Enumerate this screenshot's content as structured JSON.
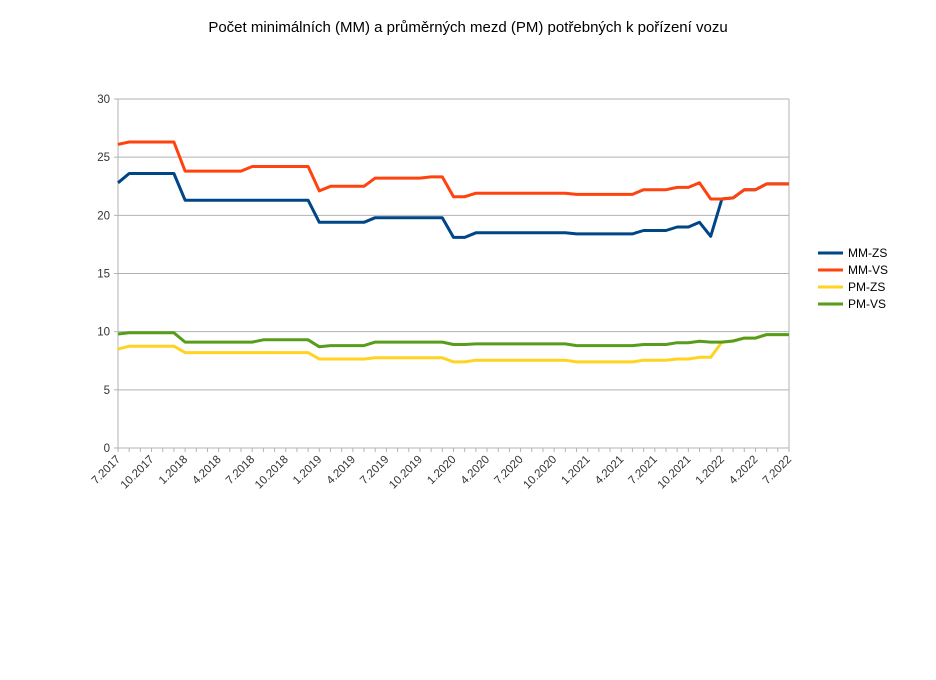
{
  "chart_data": {
    "type": "line",
    "title": "Počet minimálních (MM) a průměrných mezd (PM) potřebných k pořízení vozu",
    "xlabel": "",
    "ylabel": "",
    "ylim": [
      0,
      30
    ],
    "yticks": [
      "0",
      "5",
      "10",
      "15",
      "20",
      "25",
      "30"
    ],
    "grid": true,
    "legend_position": "right",
    "categories": [
      "7.2017",
      "8.2017",
      "9.2017",
      "10.2017",
      "11.2017",
      "12.2017",
      "1.2018",
      "2.2018",
      "3.2018",
      "4.2018",
      "5.2018",
      "6.2018",
      "7.2018",
      "8.2018",
      "9.2018",
      "10.2018",
      "11.2018",
      "12.2018",
      "1.2019",
      "2.2019",
      "3.2019",
      "4.2019",
      "5.2019",
      "6.2019",
      "7.2019",
      "8.2019",
      "9.2019",
      "10.2019",
      "11.2019",
      "12.2019",
      "1.2020",
      "2.2020",
      "3.2020",
      "4.2020",
      "5.2020",
      "6.2020",
      "7.2020",
      "8.2020",
      "9.2020",
      "10.2020",
      "11.2020",
      "12.2020",
      "1.2021",
      "2.2021",
      "3.2021",
      "4.2021",
      "5.2021",
      "6.2021",
      "7.2021",
      "8.2021",
      "9.2021",
      "10.2021",
      "11.2021",
      "12.2021",
      "1.2022",
      "2.2022",
      "3.2022",
      "4.2022",
      "5.2022",
      "6.2022",
      "7.2022"
    ],
    "series": [
      {
        "name": "MM-ZS",
        "color": "#004586",
        "values": [
          22.8,
          23.6,
          23.6,
          23.6,
          23.6,
          23.6,
          21.3,
          21.3,
          21.3,
          21.3,
          21.3,
          21.3,
          21.3,
          21.3,
          21.3,
          21.3,
          21.3,
          21.3,
          19.4,
          19.4,
          19.4,
          19.4,
          19.4,
          19.8,
          19.8,
          19.8,
          19.8,
          19.8,
          19.8,
          19.8,
          18.1,
          18.1,
          18.5,
          18.5,
          18.5,
          18.5,
          18.5,
          18.5,
          18.5,
          18.5,
          18.5,
          18.4,
          18.4,
          18.4,
          18.4,
          18.4,
          18.4,
          18.7,
          18.7,
          18.7,
          19.0,
          19.0,
          19.4,
          18.2,
          21.4,
          21.5,
          22.2,
          22.2,
          22.7,
          22.7,
          22.7
        ]
      },
      {
        "name": "MM-VS",
        "color": "#ff420e",
        "values": [
          26.1,
          26.3,
          26.3,
          26.3,
          26.3,
          26.3,
          23.8,
          23.8,
          23.8,
          23.8,
          23.8,
          23.8,
          24.2,
          24.2,
          24.2,
          24.2,
          24.2,
          24.2,
          22.1,
          22.5,
          22.5,
          22.5,
          22.5,
          23.2,
          23.2,
          23.2,
          23.2,
          23.2,
          23.3,
          23.3,
          21.6,
          21.6,
          21.9,
          21.9,
          21.9,
          21.9,
          21.9,
          21.9,
          21.9,
          21.9,
          21.9,
          21.8,
          21.8,
          21.8,
          21.8,
          21.8,
          21.8,
          22.2,
          22.2,
          22.2,
          22.4,
          22.4,
          22.8,
          21.4,
          21.4,
          21.5,
          22.2,
          22.2,
          22.7,
          22.7,
          22.7
        ]
      },
      {
        "name": "PM-ZS",
        "color": "#ffd320",
        "values": [
          8.5,
          8.75,
          8.75,
          8.75,
          8.75,
          8.75,
          8.2,
          8.2,
          8.2,
          8.2,
          8.2,
          8.2,
          8.2,
          8.2,
          8.2,
          8.2,
          8.2,
          8.2,
          7.65,
          7.65,
          7.65,
          7.65,
          7.65,
          7.75,
          7.75,
          7.75,
          7.75,
          7.75,
          7.75,
          7.75,
          7.4,
          7.4,
          7.55,
          7.55,
          7.55,
          7.55,
          7.55,
          7.55,
          7.55,
          7.55,
          7.55,
          7.4,
          7.4,
          7.4,
          7.4,
          7.4,
          7.4,
          7.55,
          7.55,
          7.55,
          7.65,
          7.65,
          7.8,
          7.8,
          9.1,
          9.2,
          9.45,
          9.45,
          9.75,
          9.75,
          9.75
        ]
      },
      {
        "name": "PM-VS",
        "color": "#579d1c",
        "values": [
          9.8,
          9.9,
          9.9,
          9.9,
          9.9,
          9.9,
          9.1,
          9.1,
          9.1,
          9.1,
          9.1,
          9.1,
          9.1,
          9.3,
          9.3,
          9.3,
          9.3,
          9.3,
          8.7,
          8.8,
          8.8,
          8.8,
          8.8,
          9.1,
          9.1,
          9.1,
          9.1,
          9.1,
          9.1,
          9.1,
          8.9,
          8.9,
          8.95,
          8.95,
          8.95,
          8.95,
          8.95,
          8.95,
          8.95,
          8.95,
          8.95,
          8.8,
          8.8,
          8.8,
          8.8,
          8.8,
          8.8,
          8.9,
          8.9,
          8.9,
          9.05,
          9.05,
          9.17,
          9.1,
          9.1,
          9.2,
          9.45,
          9.45,
          9.75,
          9.75,
          9.75
        ]
      }
    ]
  }
}
